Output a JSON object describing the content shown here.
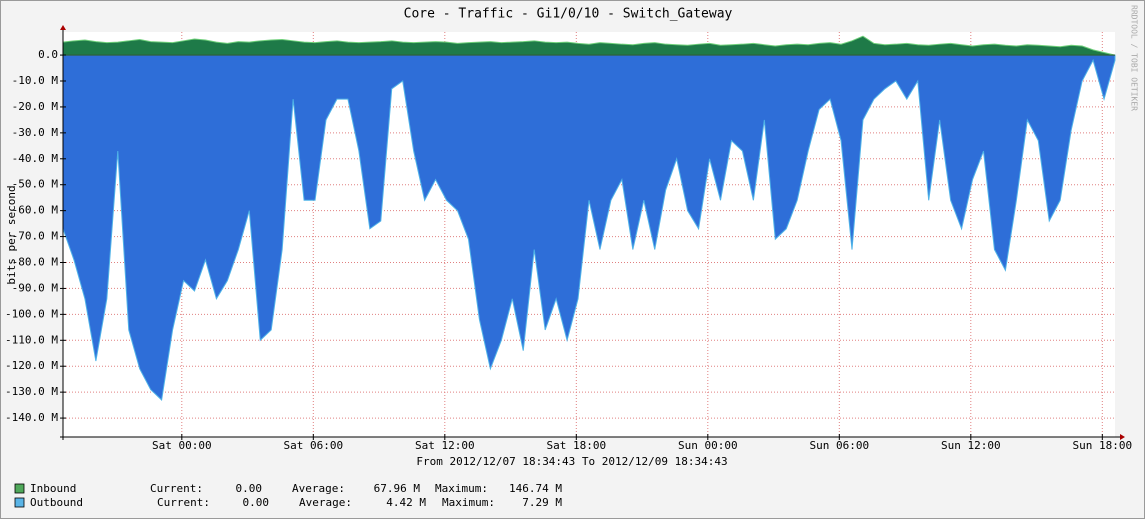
{
  "chart_data": {
    "type": "area",
    "title": "Core - Traffic - Gi1/0/10  - Switch_Gateway",
    "subtitle": "From 2012/12/07 18:34:43 To 2012/12/09 18:34:43",
    "y_label": "bits per second",
    "side_text": "RRDTOOL / TOBI OETIKER",
    "grid": true,
    "xlim": [
      0,
      48
    ],
    "xticks": [
      {
        "value": 5.421,
        "label": "Sat 00:00"
      },
      {
        "value": 11.421,
        "label": "Sat 06:00"
      },
      {
        "value": 17.421,
        "label": "Sat 12:00"
      },
      {
        "value": 23.421,
        "label": "Sat 18:00"
      },
      {
        "value": 29.421,
        "label": "Sun 00:00"
      },
      {
        "value": 35.421,
        "label": "Sun 06:00"
      },
      {
        "value": 41.421,
        "label": "Sun 12:00"
      },
      {
        "value": 47.421,
        "label": "Sun 18:00"
      }
    ],
    "ylim": [
      -147300000,
      8900000
    ],
    "yticks": [
      {
        "value": 0,
        "label": "0.0"
      },
      {
        "value": -10000000,
        "label": "-10.0 M"
      },
      {
        "value": -20000000,
        "label": "-20.0 M"
      },
      {
        "value": -30000000,
        "label": "-30.0 M"
      },
      {
        "value": -40000000,
        "label": "-40.0 M"
      },
      {
        "value": -50000000,
        "label": "-50.0 M"
      },
      {
        "value": -60000000,
        "label": "-60.0 M"
      },
      {
        "value": -70000000,
        "label": "-70.0 M"
      },
      {
        "value": -80000000,
        "label": "-80.0 M"
      },
      {
        "value": -90000000,
        "label": "-90.0 M"
      },
      {
        "value": -100000000,
        "label": "-100.0 M"
      },
      {
        "value": -110000000,
        "label": "-110.0 M"
      },
      {
        "value": -120000000,
        "label": "-120.0 M"
      },
      {
        "value": -130000000,
        "label": "-130.0 M"
      },
      {
        "value": -140000000,
        "label": "-140.0 M"
      }
    ],
    "x": [
      0,
      0.5,
      1,
      1.5,
      2,
      2.5,
      3,
      3.5,
      4,
      4.5,
      5,
      5.5,
      6,
      6.5,
      7,
      7.5,
      8,
      8.5,
      9,
      9.5,
      10,
      10.5,
      11,
      11.5,
      12,
      12.5,
      13,
      13.5,
      14,
      14.5,
      15,
      15.5,
      16,
      16.5,
      17,
      17.5,
      18,
      18.5,
      19,
      19.5,
      20,
      20.5,
      21,
      21.5,
      22,
      22.5,
      23,
      23.5,
      24,
      24.5,
      25,
      25.5,
      26,
      26.5,
      27,
      27.5,
      28,
      28.5,
      29,
      29.5,
      30,
      30.5,
      31,
      31.5,
      32,
      32.5,
      33,
      33.5,
      34,
      34.5,
      35,
      35.5,
      36,
      36.5,
      37,
      37.5,
      38,
      38.5,
      39,
      39.5,
      40,
      40.5,
      41,
      41.5,
      42,
      42.5,
      43,
      43.5,
      44,
      44.5,
      45,
      45.5,
      46,
      46.5,
      47,
      47.5,
      48
    ],
    "series": [
      {
        "name": "Inbound",
        "color": "#2e6ed8",
        "legend_color": "#4fa85a",
        "stats": [
          {
            "label": "Current:",
            "value": "0.00"
          },
          {
            "label": "Average:",
            "value": "67.96 M"
          },
          {
            "label": "Maximum:",
            "value": "146.74 M"
          }
        ],
        "values": [
          -67000000.0,
          -79000000.0,
          -94000000.0,
          -118000000.0,
          -94000000.0,
          -37000000.0,
          -106000000.0,
          -121000000.0,
          -129000000.0,
          -133000000.0,
          -106000000.0,
          -87000000.0,
          -91000000.0,
          -79000000.0,
          -94000000.0,
          -87000000.0,
          -75000000.0,
          -60000000.0,
          -110000000.0,
          -106000000.0,
          -75000000.0,
          -17000000.0,
          -56000000.0,
          -56000000.0,
          -25000000.0,
          -17000000.0,
          -17000000.0,
          -37000000.0,
          -67000000.0,
          -64000000.0,
          -13000000.0,
          -10000000.0,
          -37000000.0,
          -56000000.0,
          -48000000.0,
          -56000000.0,
          -60000000.0,
          -71000000.0,
          -102000000.0,
          -121000000.0,
          -110000000.0,
          -94000000.0,
          -114000000.0,
          -75000000.0,
          -106000000.0,
          -94000000.0,
          -110000000.0,
          -94000000.0,
          -56000000.0,
          -75000000.0,
          -56000000.0,
          -48000000.0,
          -75000000.0,
          -56000000.0,
          -75000000.0,
          -52000000.0,
          -40000000.0,
          -60000000.0,
          -67000000.0,
          -40000000.0,
          -56000000.0,
          -33000000.0,
          -37000000.0,
          -56000000.0,
          -25000000.0,
          -71000000.0,
          -67000000.0,
          -56000000.0,
          -37000000.0,
          -21000000.0,
          -17000000.0,
          -33000000.0,
          -75000000.0,
          -25000000.0,
          -17000000.0,
          -13000000.0,
          -10000000.0,
          -17000000.0,
          -10000000.0,
          -56000000.0,
          -25000000.0,
          -56000000.0,
          -67000000.0,
          -48000000.0,
          -37000000.0,
          -75000000.0,
          -83000000.0,
          -56000000.0,
          -25000000.0,
          -33000000.0,
          -64000000.0,
          -56000000.0,
          -29000000.0,
          -10000000.0,
          -2000000.0,
          -17000000.0,
          -2000000.0
        ]
      },
      {
        "name": "Outbound",
        "color": "#1e7a48",
        "legend_color": "#5ab4e6",
        "stats": [
          {
            "label": "Current:",
            "value": "0.00"
          },
          {
            "label": "Average:",
            "value": "4.42 M"
          },
          {
            "label": "Maximum:",
            "value": "7.29 M"
          }
        ],
        "values": [
          5000000.0,
          5500000.0,
          5800000.0,
          5200000.0,
          4800000.0,
          5000000.0,
          5500000.0,
          6000000.0,
          5200000.0,
          5000000.0,
          4800000.0,
          5500000.0,
          6200000.0,
          5800000.0,
          5000000.0,
          4500000.0,
          5200000.0,
          5000000.0,
          5500000.0,
          5800000.0,
          6000000.0,
          5500000.0,
          5000000.0,
          4800000.0,
          5200000.0,
          5500000.0,
          5000000.0,
          4800000.0,
          5000000.0,
          5200000.0,
          5500000.0,
          5000000.0,
          4800000.0,
          5000000.0,
          5200000.0,
          5000000.0,
          4500000.0,
          4800000.0,
          5000000.0,
          5200000.0,
          4800000.0,
          5000000.0,
          5200000.0,
          5500000.0,
          5000000.0,
          4800000.0,
          5000000.0,
          4500000.0,
          4200000.0,
          4800000.0,
          4500000.0,
          4200000.0,
          4000000.0,
          4500000.0,
          4800000.0,
          4200000.0,
          4000000.0,
          3800000.0,
          4200000.0,
          4500000.0,
          3800000.0,
          4000000.0,
          4200000.0,
          4500000.0,
          4000000.0,
          3500000.0,
          4000000.0,
          4200000.0,
          4000000.0,
          4500000.0,
          4800000.0,
          4200000.0,
          5500000.0,
          7300000.0,
          4500000.0,
          4000000.0,
          4200000.0,
          4500000.0,
          4000000.0,
          3800000.0,
          4200000.0,
          4500000.0,
          4000000.0,
          3500000.0,
          4000000.0,
          4200000.0,
          3800000.0,
          3500000.0,
          4000000.0,
          3800000.0,
          3500000.0,
          3200000.0,
          3800000.0,
          3500000.0,
          2000000.0,
          1000000.0,
          0
        ]
      }
    ]
  }
}
